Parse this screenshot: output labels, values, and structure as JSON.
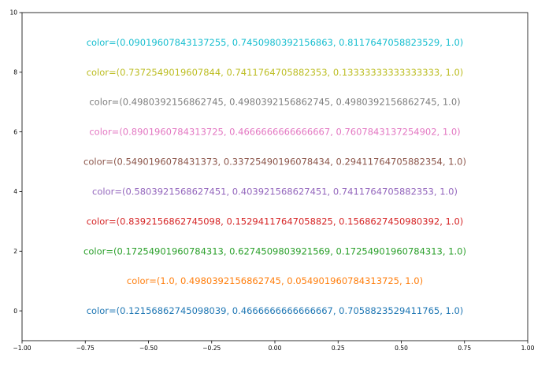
{
  "chart_data": {
    "type": "scatter",
    "title": "",
    "xlabel": "",
    "ylabel": "",
    "xlim": [
      -1.0,
      1.0
    ],
    "ylim": [
      -1,
      10
    ],
    "grid": false,
    "x_ticks": [
      "−1.00",
      "−0.75",
      "−0.50",
      "−0.25",
      "0.00",
      "0.25",
      "0.50",
      "0.75",
      "1.00"
    ],
    "x_tick_values": [
      -1.0,
      -0.75,
      -0.5,
      -0.25,
      0.0,
      0.25,
      0.5,
      0.75,
      1.0
    ],
    "y_ticks": [
      "0",
      "2",
      "4",
      "6",
      "8",
      "10"
    ],
    "y_tick_values": [
      0,
      2,
      4,
      6,
      8,
      10
    ],
    "annotations": [
      {
        "x": 0.0,
        "y": 0,
        "text": "color=(0.12156862745098039, 0.4666666666666667, 0.7058823529411765, 1.0)",
        "color": "#1f77b4"
      },
      {
        "x": 0.0,
        "y": 1,
        "text": "color=(1.0, 0.4980392156862745, 0.054901960784313725, 1.0)",
        "color": "#ff7f0e"
      },
      {
        "x": 0.0,
        "y": 2,
        "text": "color=(0.17254901960784313, 0.6274509803921569, 0.17254901960784313, 1.0)",
        "color": "#2ca02c"
      },
      {
        "x": 0.0,
        "y": 3,
        "text": "color=(0.8392156862745098, 0.15294117647058825, 0.1568627450980392, 1.0)",
        "color": "#d62728"
      },
      {
        "x": 0.0,
        "y": 4,
        "text": "color=(0.5803921568627451, 0.403921568627451, 0.7411764705882353, 1.0)",
        "color": "#9467bd"
      },
      {
        "x": 0.0,
        "y": 5,
        "text": "color=(0.5490196078431373, 0.33725490196078434, 0.29411764705882354, 1.0)",
        "color": "#8c564b"
      },
      {
        "x": 0.0,
        "y": 6,
        "text": "color=(0.8901960784313725, 0.4666666666666667, 0.7607843137254902, 1.0)",
        "color": "#e377c2"
      },
      {
        "x": 0.0,
        "y": 7,
        "text": "color=(0.4980392156862745, 0.4980392156862745, 0.4980392156862745, 1.0)",
        "color": "#7f7f7f"
      },
      {
        "x": 0.0,
        "y": 8,
        "text": "color=(0.7372549019607844, 0.7411764705882353, 0.13333333333333333, 1.0)",
        "color": "#bcbd22"
      },
      {
        "x": 0.0,
        "y": 9,
        "text": "color=(0.09019607843137255, 0.7450980392156863, 0.8117647058823529, 1.0)",
        "color": "#17becf"
      }
    ]
  }
}
